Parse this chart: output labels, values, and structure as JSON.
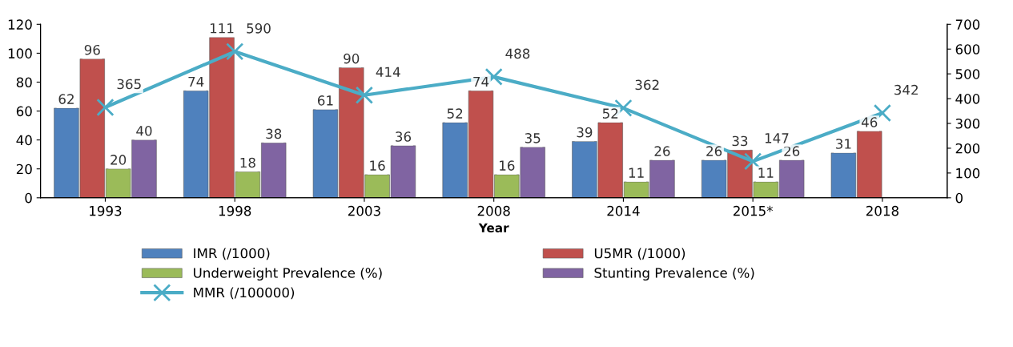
{
  "chart_data": {
    "type": "bar",
    "xlabel": "Year",
    "categories": [
      "1993",
      "1998",
      "2003",
      "2008",
      "2014",
      "2015*",
      "2018"
    ],
    "series": [
      {
        "name": "IMR (/1000)",
        "color": "#4f81bd",
        "values": [
          62,
          74,
          61,
          52,
          39,
          26,
          31
        ]
      },
      {
        "name": "U5MR (/1000)",
        "color": "#c0504d",
        "values": [
          96,
          111,
          90,
          74,
          52,
          33,
          46
        ]
      },
      {
        "name": "Underweight Prevalence (%)",
        "color": "#9bbb59",
        "values": [
          20,
          18,
          16,
          16,
          11,
          11,
          null
        ]
      },
      {
        "name": "Stunting Prevalence (%)",
        "color": "#8064a2",
        "values": [
          40,
          38,
          36,
          35,
          26,
          26,
          null
        ]
      },
      {
        "name": "MMR (/100000)",
        "color": "#4bacc6",
        "type": "line",
        "axis": "y2",
        "marker": "cross",
        "values": [
          365,
          590,
          414,
          488,
          362,
          147,
          342
        ]
      }
    ],
    "ylim": [
      0,
      120
    ],
    "yticks": [
      0,
      20,
      40,
      60,
      80,
      100,
      120
    ],
    "y2lim": [
      0,
      700
    ],
    "y2ticks": [
      0,
      100,
      200,
      300,
      400,
      500,
      600,
      700
    ],
    "data_labels": true,
    "legend": "bottom",
    "grid": false
  }
}
